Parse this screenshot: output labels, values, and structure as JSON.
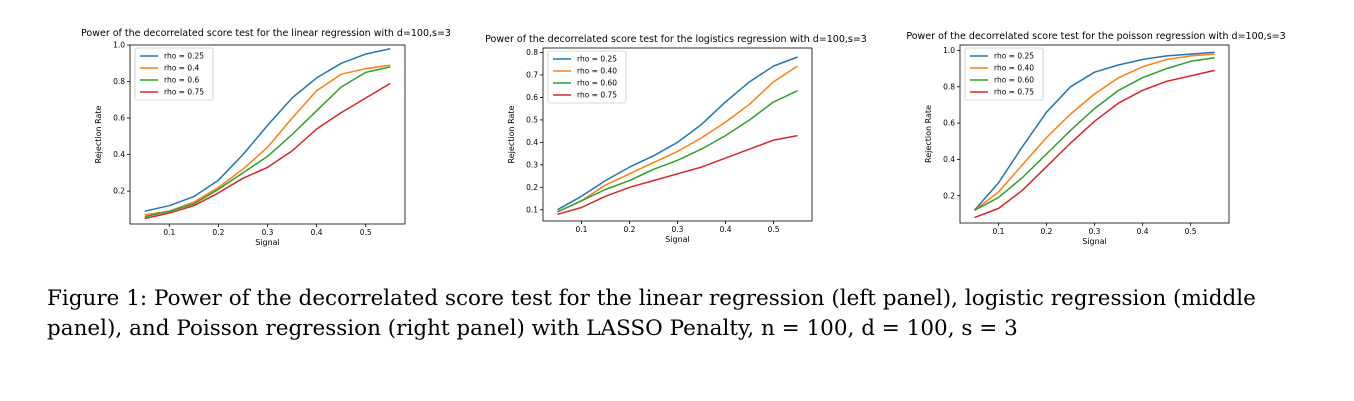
{
  "chart_data": [
    {
      "type": "line",
      "title": "Power of the decorrelated score test for the linear regression with d=100,s=3",
      "xlabel": "Signal",
      "ylabel": "Rejection Rate",
      "xlim": [
        0.02,
        0.58
      ],
      "ylim": [
        0.02,
        1.0
      ],
      "xticks": [
        0.1,
        0.2,
        0.3,
        0.4,
        0.5
      ],
      "xtick_labels": [
        "0.1",
        "0.2",
        "0.3",
        "0.4",
        "0.5"
      ],
      "yticks": [
        0.2,
        0.4,
        0.6,
        0.8,
        1.0
      ],
      "ytick_labels": [
        "0.2",
        "0.4",
        "0.6",
        "0.8",
        "1.0"
      ],
      "legend_position": "top-left",
      "x": [
        0.05,
        0.1,
        0.15,
        0.2,
        0.25,
        0.3,
        0.35,
        0.4,
        0.45,
        0.5,
        0.55
      ],
      "series": [
        {
          "name": "rho = 0.25",
          "color": "#1f77b4",
          "values": [
            0.09,
            0.12,
            0.17,
            0.26,
            0.4,
            0.56,
            0.71,
            0.82,
            0.9,
            0.95,
            0.98
          ]
        },
        {
          "name": "rho = 0.4",
          "color": "#ff7f0e",
          "values": [
            0.07,
            0.09,
            0.14,
            0.22,
            0.32,
            0.44,
            0.6,
            0.75,
            0.84,
            0.87,
            0.89
          ]
        },
        {
          "name": "rho = 0.6",
          "color": "#2ca02c",
          "values": [
            0.06,
            0.09,
            0.13,
            0.21,
            0.3,
            0.39,
            0.51,
            0.64,
            0.77,
            0.85,
            0.88
          ]
        },
        {
          "name": "rho = 0.75",
          "color": "#d62728",
          "values": [
            0.05,
            0.08,
            0.12,
            0.19,
            0.27,
            0.33,
            0.42,
            0.54,
            0.63,
            0.71,
            0.79
          ]
        }
      ]
    },
    {
      "type": "line",
      "title": "Power of the decorrelated score test for the logistics regression with d=100,s=3",
      "xlabel": "Signal",
      "ylabel": "Rejection Rate",
      "xlim": [
        0.02,
        0.58
      ],
      "ylim": [
        0.05,
        0.82
      ],
      "xticks": [
        0.1,
        0.2,
        0.3,
        0.4,
        0.5
      ],
      "xtick_labels": [
        "0.1",
        "0.2",
        "0.3",
        "0.4",
        "0.5"
      ],
      "yticks": [
        0.1,
        0.2,
        0.3,
        0.4,
        0.5,
        0.6,
        0.7,
        0.8
      ],
      "ytick_labels": [
        "0.1",
        "0.2",
        "0.3",
        "0.4",
        "0.5",
        "0.6",
        "0.7",
        "0.8"
      ],
      "legend_position": "top-left",
      "x": [
        0.05,
        0.1,
        0.15,
        0.2,
        0.25,
        0.3,
        0.35,
        0.4,
        0.45,
        0.5,
        0.55
      ],
      "series": [
        {
          "name": "rho = 0.25",
          "color": "#1f77b4",
          "values": [
            0.1,
            0.16,
            0.23,
            0.29,
            0.34,
            0.4,
            0.48,
            0.58,
            0.67,
            0.74,
            0.78
          ]
        },
        {
          "name": "rho = 0.40",
          "color": "#ff7f0e",
          "values": [
            0.09,
            0.14,
            0.21,
            0.26,
            0.31,
            0.36,
            0.42,
            0.49,
            0.57,
            0.67,
            0.74
          ]
        },
        {
          "name": "rho = 0.60",
          "color": "#2ca02c",
          "values": [
            0.09,
            0.14,
            0.19,
            0.23,
            0.28,
            0.32,
            0.37,
            0.43,
            0.5,
            0.58,
            0.63
          ]
        },
        {
          "name": "rho = 0.75",
          "color": "#d62728",
          "values": [
            0.08,
            0.11,
            0.16,
            0.2,
            0.23,
            0.26,
            0.29,
            0.33,
            0.37,
            0.41,
            0.43
          ]
        }
      ]
    },
    {
      "type": "line",
      "title": "Power of the decorrelated score test for the poisson regression with d=100,s=3",
      "xlabel": "Signal",
      "ylabel": "Rejection Rate",
      "xlim": [
        0.02,
        0.58
      ],
      "ylim": [
        0.05,
        1.03
      ],
      "xticks": [
        0.1,
        0.2,
        0.3,
        0.4,
        0.5
      ],
      "xtick_labels": [
        "0.1",
        "0.2",
        "0.3",
        "0.4",
        "0.5"
      ],
      "yticks": [
        0.2,
        0.4,
        0.6,
        0.8,
        1.0
      ],
      "ytick_labels": [
        "0.2",
        "0.4",
        "0.6",
        "0.8",
        "1.0"
      ],
      "legend_position": "top-left",
      "x": [
        0.05,
        0.1,
        0.15,
        0.2,
        0.25,
        0.3,
        0.35,
        0.4,
        0.45,
        0.5,
        0.55
      ],
      "series": [
        {
          "name": "rho = 0.25",
          "color": "#1f77b4",
          "values": [
            0.12,
            0.27,
            0.47,
            0.66,
            0.8,
            0.88,
            0.92,
            0.95,
            0.97,
            0.98,
            0.99
          ]
        },
        {
          "name": "rho = 0.40",
          "color": "#ff7f0e",
          "values": [
            0.12,
            0.22,
            0.37,
            0.52,
            0.65,
            0.76,
            0.85,
            0.91,
            0.95,
            0.97,
            0.98
          ]
        },
        {
          "name": "rho = 0.60",
          "color": "#2ca02c",
          "values": [
            0.12,
            0.19,
            0.3,
            0.43,
            0.56,
            0.68,
            0.78,
            0.85,
            0.9,
            0.94,
            0.96
          ]
        },
        {
          "name": "rho = 0.75",
          "color": "#d62728",
          "values": [
            0.08,
            0.13,
            0.23,
            0.36,
            0.49,
            0.61,
            0.71,
            0.78,
            0.83,
            0.86,
            0.89
          ]
        }
      ]
    }
  ],
  "caption": "Figure 1: Power of the decorrelated score test for the linear regression (left panel), logistic regression (middle panel), and Poisson regression (right panel) with LASSO Penalty, n = 100, d = 100, s = 3"
}
